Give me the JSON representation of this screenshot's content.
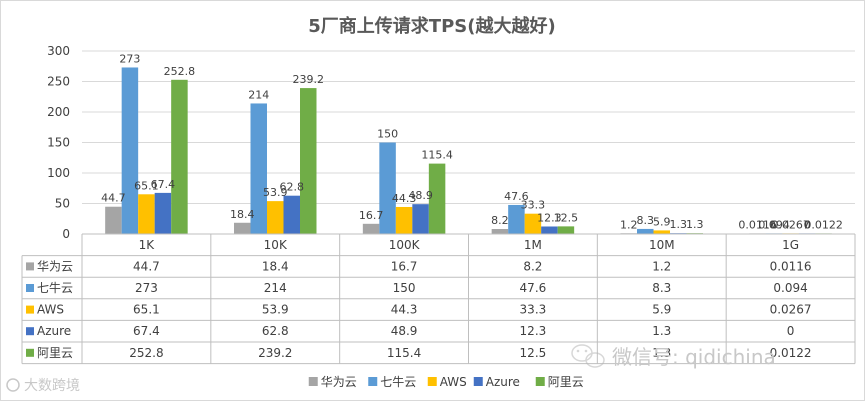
{
  "chart_data": {
    "type": "bar",
    "title": "5厂商上传请求TPS(越大越好)",
    "categories": [
      "1K",
      "10K",
      "100K",
      "1M",
      "10M",
      "1G"
    ],
    "ylim": [
      0,
      300
    ],
    "yticks": [
      0,
      50,
      100,
      150,
      200,
      250,
      300
    ],
    "grid": true,
    "legend_position": "bottom",
    "has_data_table": true,
    "series": [
      {
        "name": "华为云",
        "color": "#a5a5a5",
        "values": [
          44.7,
          18.4,
          16.7,
          8.2,
          1.2,
          0.0116
        ]
      },
      {
        "name": "七牛云",
        "color": "#5b9bd5",
        "values": [
          273,
          214,
          150,
          47.6,
          8.3,
          0.094
        ]
      },
      {
        "name": "AWS",
        "color": "#ffc000",
        "values": [
          65.1,
          53.9,
          44.3,
          33.3,
          5.9,
          0.0267
        ]
      },
      {
        "name": "Azure",
        "color": "#4472c4",
        "values": [
          67.4,
          62.8,
          48.9,
          12.3,
          1.3,
          0
        ]
      },
      {
        "name": "阿里云",
        "color": "#70ad47",
        "values": [
          252.8,
          239.2,
          115.4,
          12.5,
          1.3,
          0.0122
        ]
      }
    ]
  },
  "watermarks": {
    "wechat_text": "微信号: qidichina",
    "logo_text": "大数跨境"
  }
}
